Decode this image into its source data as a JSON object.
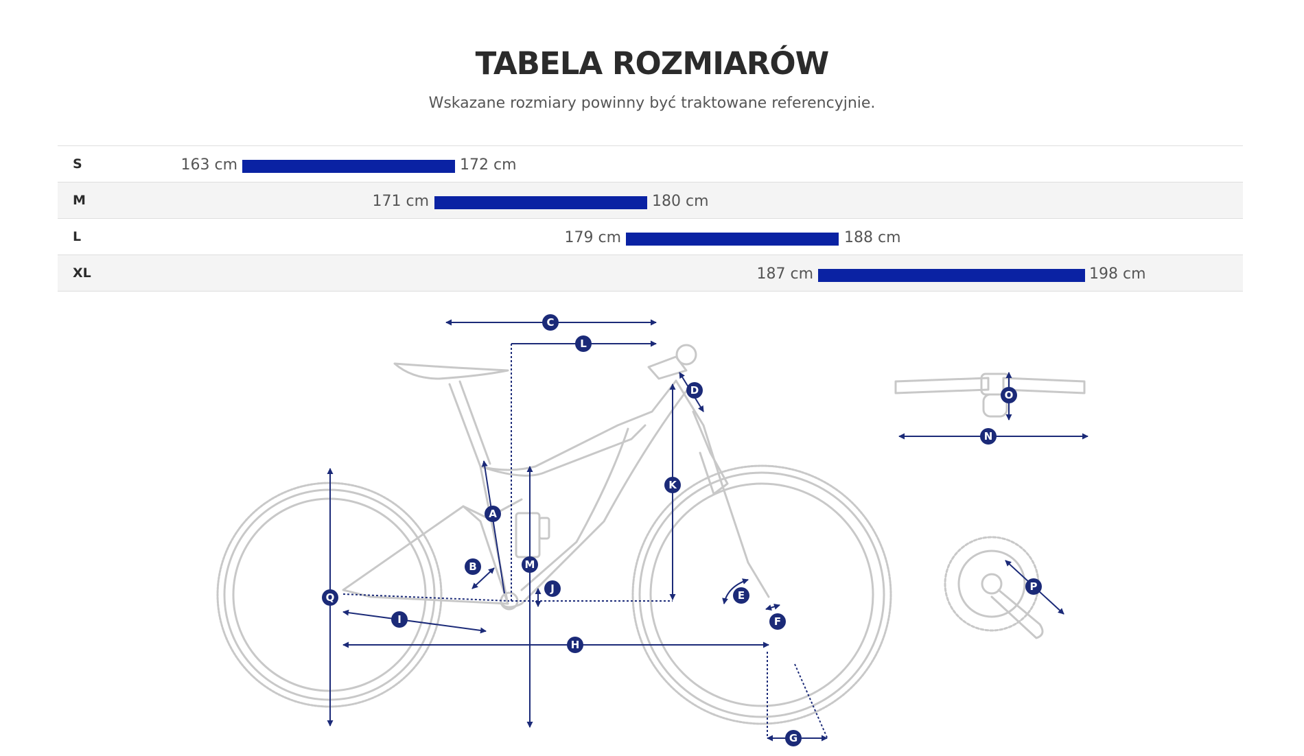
{
  "header": {
    "title": "TABELA ROZMIARÓW",
    "subtitle": "Wskazane rozmiary powinny być traktowane referencyjnie."
  },
  "size_table": {
    "accent_color": "#0a22a3",
    "rows": [
      {
        "size": "S",
        "min": 163,
        "max": 172,
        "min_label": "163 cm",
        "max_label": "172 cm"
      },
      {
        "size": "M",
        "min": 171,
        "max": 180,
        "min_label": "171 cm",
        "max_label": "180 cm"
      },
      {
        "size": "L",
        "min": 179,
        "max": 188,
        "min_label": "179 cm",
        "max_label": "188 cm"
      },
      {
        "size": "XL",
        "min": 187,
        "max": 198,
        "min_label": "187 cm",
        "max_label": "198 cm"
      }
    ]
  },
  "geometry_diagram": {
    "line_color": "#cccccc",
    "marker_color": "#1b2a78",
    "markers": [
      "A",
      "B",
      "C",
      "D",
      "E",
      "F",
      "G",
      "H",
      "I",
      "J",
      "K",
      "L",
      "M",
      "N",
      "O",
      "P",
      "Q"
    ]
  }
}
